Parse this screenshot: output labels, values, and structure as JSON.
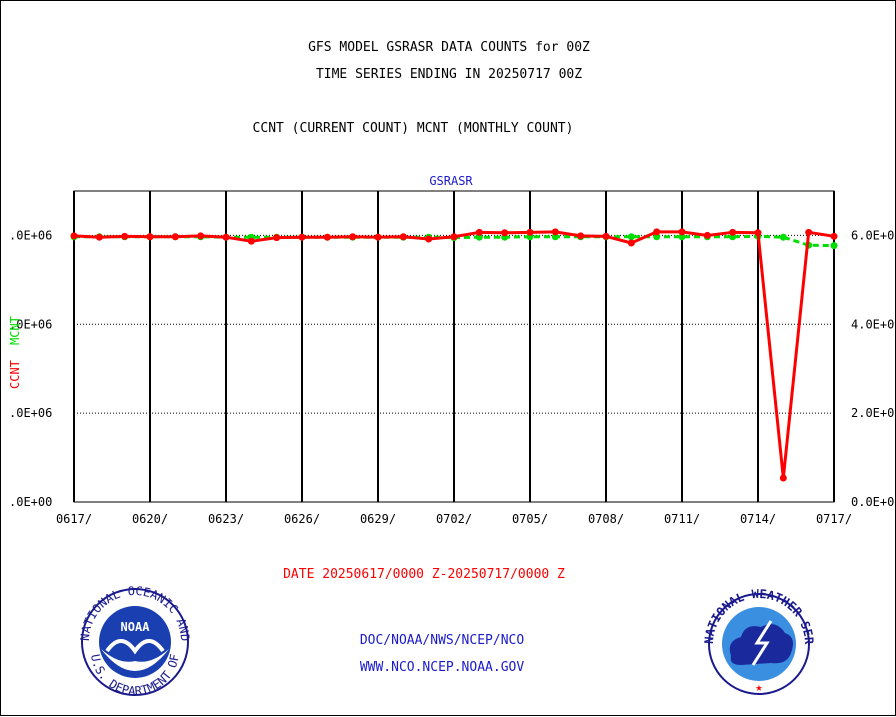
{
  "titles": {
    "line1": "GFS MODEL GSRASR DATA COUNTS for 00Z",
    "line2": "TIME SERIES ENDING IN 20250717 00Z",
    "line3": "CCNT (CURRENT COUNT) MCNT (MONTHLY COUNT)"
  },
  "chart_data": {
    "type": "line",
    "title": "GSRASR",
    "ylabel_left_ccnt": "CCNT",
    "ylabel_left_mcnt": "MCNT",
    "xlabel": "DATE 20250617/0000 Z-20250717/0000 Z",
    "x_tick_labels": [
      "0617/",
      "0620/",
      "0623/",
      "0626/",
      "0629/",
      "0702/",
      "0705/",
      "0708/",
      "0711/",
      "0714/",
      "0717/"
    ],
    "y_tick_labels_left": [
      ".0E+00",
      ".0E+06",
      ".0E+06",
      ".0E+06"
    ],
    "y_tick_labels_right": [
      "0.0E+0",
      "2.0E+0",
      "4.0E+0",
      "6.0E+0"
    ],
    "ylim": [
      0,
      7000000
    ],
    "y_ticks": [
      0,
      2000000,
      4000000,
      6000000
    ],
    "x_day_range": [
      0,
      30
    ],
    "grid": true,
    "series": [
      {
        "name": "CCNT",
        "color": "#ff0000",
        "x": [
          "0617",
          "0618",
          "0619",
          "0620",
          "0621",
          "0622",
          "0623",
          "0624",
          "0625",
          "0626",
          "0627",
          "0628",
          "0629",
          "0630",
          "0701",
          "0702",
          "0703",
          "0704",
          "0705",
          "0706",
          "0707",
          "0708",
          "0709",
          "0710",
          "0711",
          "0712",
          "0713",
          "0714",
          "0715",
          "0716",
          "0717"
        ],
        "values": [
          5990000,
          5960000,
          5980000,
          5970000,
          5970000,
          5990000,
          5960000,
          5870000,
          5950000,
          5960000,
          5960000,
          5970000,
          5960000,
          5970000,
          5920000,
          5970000,
          6070000,
          6060000,
          6070000,
          6080000,
          5990000,
          5980000,
          5830000,
          6080000,
          6080000,
          6000000,
          6070000,
          6060000,
          540000,
          6070000,
          5980000
        ]
      },
      {
        "name": "MCNT",
        "color": "#00dd00",
        "x": [
          "0617",
          "0618",
          "0619",
          "0620",
          "0621",
          "0622",
          "0623",
          "0624",
          "0625",
          "0626",
          "0627",
          "0628",
          "0629",
          "0630",
          "0701",
          "0702",
          "0703",
          "0704",
          "0705",
          "0706",
          "0707",
          "0708",
          "0709",
          "0710",
          "0711",
          "0712",
          "0713",
          "0714",
          "0715",
          "0716",
          "0717"
        ],
        "values": [
          5970000,
          5970000,
          5970000,
          5970000,
          5970000,
          5970000,
          5960000,
          5960000,
          5960000,
          5960000,
          5960000,
          5960000,
          5960000,
          5960000,
          5960000,
          5950000,
          5960000,
          5960000,
          5970000,
          5970000,
          5970000,
          5970000,
          5970000,
          5970000,
          5970000,
          5970000,
          5970000,
          5980000,
          5960000,
          5780000,
          5770000
        ]
      }
    ]
  },
  "footer": {
    "line1": "DOC/NOAA/NWS/NCEP/NCO",
    "line2": "WWW.NCO.NCEP.NOAA.GOV",
    "noaa_logo_text": "NOAA",
    "noaa_ring_text": "NATIONAL OCEANIC AND ATMOSPHERIC ADMINISTRATION",
    "noaa_ring_bottom": "U.S. DEPARTMENT OF COMMERCE",
    "nws_ring_text": "NATIONAL WEATHER SERVICE"
  }
}
